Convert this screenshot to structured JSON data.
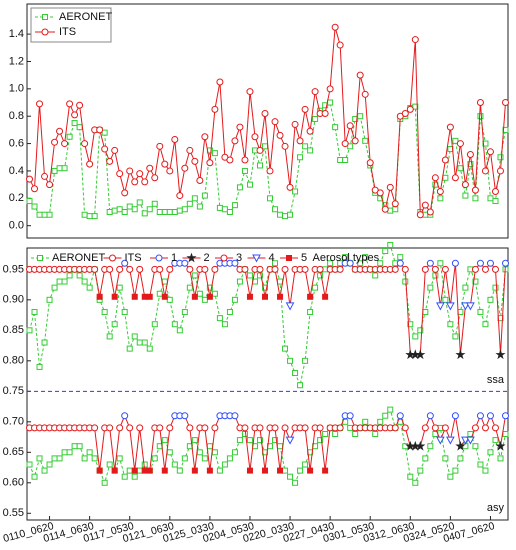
{
  "chart_data": [
    {
      "type": "line",
      "legend": "upper left",
      "ylim": [
        -0.09,
        1.62
      ],
      "yticks": [
        {
          "value": 0,
          "label": "0.0"
        },
        {
          "value": 0.2,
          "label": "0.2"
        },
        {
          "value": 0.4,
          "label": "0.4"
        },
        {
          "value": 0.6,
          "label": "0.6"
        },
        {
          "value": 0.8,
          "label": "0.8"
        },
        {
          "value": 1.0,
          "label": "1.0"
        },
        {
          "value": 1.2,
          "label": "1.2"
        },
        {
          "value": 1.4,
          "label": "1.4"
        }
      ],
      "series": [
        {
          "name": "AERONET",
          "color": "#33cc33",
          "marker": "square",
          "dash": true,
          "values": [
            0.18,
            0.14,
            0.08,
            0.08,
            0.08,
            0.4,
            0.42,
            0.42,
            0.65,
            0.75,
            0.72,
            0.08,
            0.07,
            0.07,
            0.7,
            0.68,
            0.1,
            0.11,
            0.12,
            0.1,
            0.14,
            0.12,
            0.17,
            0.09,
            0.12,
            0.16,
            0.1,
            0.1,
            0.1,
            0.1,
            0.11,
            0.12,
            0.16,
            0.2,
            0.14,
            0.22,
            0.55,
            0.53,
            0.13,
            0.12,
            0.1,
            0.15,
            0.28,
            0.4,
            0.3,
            0.55,
            0.44,
            0.58,
            0.2,
            0.12,
            0.08,
            0.07,
            0.08,
            0.25,
            0.5,
            0.58,
            0.55,
            0.78,
            0.84,
            0.88,
            0.9,
            0.72,
            0.48,
            0.48,
            0.58,
            0.78,
            0.8,
            0.62,
            0.44,
            0.24,
            0.2,
            0.15,
            0.11,
            0.12,
            0.78,
            0.8,
            0.86,
            0.87,
            0.1,
            0.08,
            0.08,
            0.3,
            0.2,
            0.35,
            0.56,
            0.62,
            0.42,
            0.22,
            0.45,
            0.2,
            0.8,
            0.6,
            0.2,
            0.18,
            0.5,
            0.7
          ]
        },
        {
          "name": "ITS",
          "color": "#e31a1c",
          "marker": "circle",
          "dash": false,
          "values": [
            0.34,
            0.27,
            0.89,
            0.36,
            0.3,
            0.61,
            0.69,
            0.6,
            0.89,
            0.81,
            0.88,
            0.6,
            0.45,
            0.7,
            0.7,
            0.56,
            0.47,
            0.55,
            0.38,
            0.24,
            0.4,
            0.32,
            0.38,
            0.32,
            0.42,
            0.35,
            0.58,
            0.45,
            0.4,
            0.63,
            0.22,
            0.42,
            0.55,
            0.47,
            0.33,
            0.65,
            0.46,
            0.85,
            1.05,
            0.5,
            0.48,
            0.62,
            0.72,
            0.48,
            0.98,
            0.65,
            0.55,
            0.82,
            0.4,
            0.76,
            0.66,
            0.58,
            0.28,
            0.74,
            0.62,
            0.85,
            0.69,
            0.98,
            0.82,
            0.82,
            1.0,
            1.45,
            1.32,
            0.6,
            0.73,
            0.62,
            1.1,
            0.96,
            0.46,
            0.26,
            0.24,
            0.12,
            0.28,
            0.16,
            0.8,
            0.82,
            0.85,
            1.36,
            0.08,
            0.15,
            0.1,
            0.35,
            0.25,
            0.48,
            0.72,
            0.35,
            0.6,
            0.3,
            0.52,
            0.26,
            0.9,
            0.4,
            0.54,
            0.25,
            0.4,
            0.9
          ]
        }
      ]
    },
    {
      "type": "line",
      "legend": "top",
      "ylim": [
        0.539,
        0.985
      ],
      "yticks": [
        0.55,
        {
          "value": 0.6,
          "label": "0.60"
        },
        0.65,
        {
          "value": 0.7,
          "label": "0.70"
        },
        0.75,
        {
          "value": 0.8,
          "label": "0.80"
        },
        0.85,
        {
          "value": 0.9,
          "label": "0.90"
        },
        0.95
      ],
      "categories": [
        null,
        null,
        null,
        null,
        "0110_0620",
        null,
        null,
        null,
        null,
        null,
        null,
        null,
        "0114_0630",
        null,
        null,
        null,
        null,
        null,
        null,
        null,
        "0117_0530",
        null,
        null,
        null,
        null,
        null,
        null,
        null,
        "0121_0630",
        null,
        null,
        null,
        null,
        null,
        null,
        null,
        "0125_0330",
        null,
        null,
        null,
        null,
        null,
        null,
        null,
        "0204_0530",
        null,
        null,
        null,
        null,
        null,
        null,
        null,
        "0220_0330",
        null,
        null,
        null,
        null,
        null,
        null,
        null,
        "0227_0430",
        null,
        null,
        null,
        null,
        null,
        null,
        null,
        "0301_0530",
        null,
        null,
        null,
        null,
        null,
        null,
        null,
        "0312_0630",
        null,
        null,
        null,
        null,
        null,
        null,
        null,
        "0324_0520",
        null,
        null,
        null,
        null,
        null,
        null,
        null,
        "0407_0620",
        null,
        null,
        null
      ],
      "reference_line": 0.75,
      "reference_color": "#3333ff",
      "annotations": [
        "ssa",
        "asy"
      ],
      "series": [
        {
          "name": "AERONET",
          "color": "#33cc33",
          "marker": "square",
          "dash": true,
          "ssa": [
            0.85,
            0.88,
            0.79,
            0.83,
            0.9,
            0.92,
            0.93,
            0.93,
            0.94,
            0.95,
            0.94,
            0.93,
            0.92,
            0.95,
            0.9,
            0.88,
            0.84,
            0.86,
            0.92,
            0.88,
            0.82,
            0.84,
            0.83,
            0.83,
            0.82,
            0.86,
            0.91,
            0.93,
            0.9,
            0.86,
            0.85,
            0.88,
            0.92,
            0.94,
            0.91,
            0.9,
            0.92,
            0.91,
            0.87,
            0.86,
            0.88,
            0.9,
            0.93,
            0.95,
            0.94,
            0.93,
            0.94,
            0.92,
            0.95,
            0.96,
            0.93,
            0.82,
            0.8,
            0.78,
            0.76,
            0.8,
            0.88,
            0.92,
            0.94,
            0.95,
            0.96,
            0.95,
            0.96,
            0.97,
            0.96,
            0.95,
            0.96,
            0.97,
            0.95,
            0.94,
            0.96,
            0.98,
            0.99,
            0.96,
            0.97,
            0.93,
            0.86,
            0.84,
            0.85,
            0.88,
            0.92,
            0.94,
            0.96,
            0.9,
            0.86,
            0.84,
            0.88,
            0.92,
            0.95,
            0.93,
            0.88,
            0.86,
            0.9,
            0.92,
            0.87,
            0.95
          ],
          "asy": [
            0.63,
            0.61,
            0.64,
            0.62,
            0.63,
            0.64,
            0.64,
            0.65,
            0.65,
            0.66,
            0.66,
            0.64,
            0.65,
            0.64,
            0.62,
            0.6,
            0.63,
            0.62,
            0.64,
            0.61,
            0.62,
            0.61,
            0.62,
            0.63,
            0.62,
            0.64,
            0.66,
            0.67,
            0.65,
            0.63,
            0.62,
            0.64,
            0.66,
            0.67,
            0.65,
            0.64,
            0.66,
            0.65,
            0.62,
            0.63,
            0.64,
            0.65,
            0.67,
            0.68,
            0.67,
            0.66,
            0.67,
            0.65,
            0.66,
            0.67,
            0.66,
            0.62,
            0.61,
            0.6,
            0.62,
            0.63,
            0.65,
            0.66,
            0.67,
            0.68,
            0.69,
            0.68,
            0.69,
            0.7,
            0.69,
            0.68,
            0.69,
            0.7,
            0.69,
            0.68,
            0.7,
            0.71,
            0.72,
            0.69,
            0.7,
            0.66,
            0.61,
            0.6,
            0.62,
            0.64,
            0.66,
            0.68,
            0.69,
            0.64,
            0.61,
            0.62,
            0.64,
            0.66,
            0.68,
            0.66,
            0.63,
            0.62,
            0.65,
            0.67,
            0.64,
            0.68
          ]
        },
        {
          "name": "ITS",
          "color": "#e31a1c",
          "marker": "circle",
          "dash": false,
          "ssa": [
            0.95,
            0.95,
            0.95,
            0.95,
            0.95,
            0.95,
            0.95,
            0.95,
            0.95,
            0.95,
            0.95,
            0.95,
            0.95,
            0.95,
            0.905,
            0.95,
            0.95,
            0.905,
            0.95,
            0.96,
            0.95,
            0.905,
            0.95,
            0.905,
            0.905,
            0.95,
            0.95,
            0.905,
            0.95,
            0.96,
            0.96,
            0.96,
            0.95,
            0.905,
            0.95,
            0.95,
            0.905,
            0.95,
            0.96,
            0.96,
            0.96,
            0.96,
            0.95,
            0.95,
            0.905,
            0.95,
            0.95,
            0.905,
            0.95,
            0.95,
            0.905,
            0.95,
            0.89,
            0.95,
            0.95,
            0.95,
            0.905,
            0.95,
            0.95,
            0.905,
            0.95,
            0.95,
            0.95,
            0.96,
            0.96,
            0.95,
            0.95,
            0.95,
            0.95,
            0.95,
            0.95,
            0.95,
            0.95,
            0.95,
            0.96,
            0.95,
            0.81,
            0.81,
            0.81,
            0.95,
            0.96,
            0.95,
            0.89,
            0.95,
            0.89,
            0.96,
            0.81,
            0.89,
            0.89,
            0.95,
            0.96,
            0.95,
            0.96,
            0.95,
            0.81,
            0.96
          ],
          "asy": [
            0.69,
            0.69,
            0.69,
            0.69,
            0.69,
            0.69,
            0.69,
            0.69,
            0.69,
            0.69,
            0.69,
            0.69,
            0.69,
            0.69,
            0.62,
            0.69,
            0.69,
            0.62,
            0.69,
            0.71,
            0.69,
            0.62,
            0.69,
            0.62,
            0.62,
            0.69,
            0.69,
            0.62,
            0.69,
            0.71,
            0.71,
            0.71,
            0.69,
            0.62,
            0.69,
            0.69,
            0.62,
            0.69,
            0.71,
            0.71,
            0.71,
            0.71,
            0.69,
            0.69,
            0.62,
            0.69,
            0.69,
            0.62,
            0.69,
            0.69,
            0.62,
            0.69,
            0.67,
            0.69,
            0.69,
            0.69,
            0.62,
            0.69,
            0.69,
            0.62,
            0.69,
            0.69,
            0.69,
            0.71,
            0.71,
            0.69,
            0.69,
            0.69,
            0.69,
            0.69,
            0.69,
            0.69,
            0.69,
            0.69,
            0.71,
            0.69,
            0.66,
            0.66,
            0.66,
            0.69,
            0.71,
            0.69,
            0.67,
            0.69,
            0.67,
            0.71,
            0.66,
            0.67,
            0.67,
            0.69,
            0.71,
            0.69,
            0.71,
            0.69,
            0.66,
            0.71
          ],
          "types": [
            3,
            3,
            3,
            3,
            3,
            3,
            3,
            3,
            3,
            3,
            3,
            3,
            3,
            3,
            5,
            3,
            3,
            5,
            3,
            1,
            3,
            5,
            3,
            5,
            5,
            3,
            3,
            5,
            3,
            1,
            1,
            1,
            3,
            5,
            3,
            3,
            5,
            3,
            1,
            1,
            1,
            1,
            3,
            3,
            5,
            3,
            3,
            5,
            3,
            3,
            5,
            3,
            4,
            3,
            3,
            3,
            5,
            3,
            3,
            5,
            3,
            3,
            3,
            1,
            1,
            3,
            3,
            3,
            3,
            3,
            3,
            3,
            3,
            3,
            1,
            3,
            2,
            2,
            2,
            3,
            1,
            3,
            4,
            3,
            4,
            1,
            2,
            4,
            4,
            3,
            1,
            3,
            1,
            3,
            2,
            1
          ]
        }
      ],
      "aerosol_types": {
        "title": "Aerosol types",
        "names": [
          "1",
          "2",
          "3",
          "4",
          "5"
        ],
        "markers": [
          "circle",
          "star",
          "circle",
          "triangle-down",
          "filled-square"
        ],
        "colors": [
          "#2f4fff",
          "#222222",
          "#e31a1c",
          "#2f4fff",
          "#e31a1c"
        ]
      }
    }
  ]
}
